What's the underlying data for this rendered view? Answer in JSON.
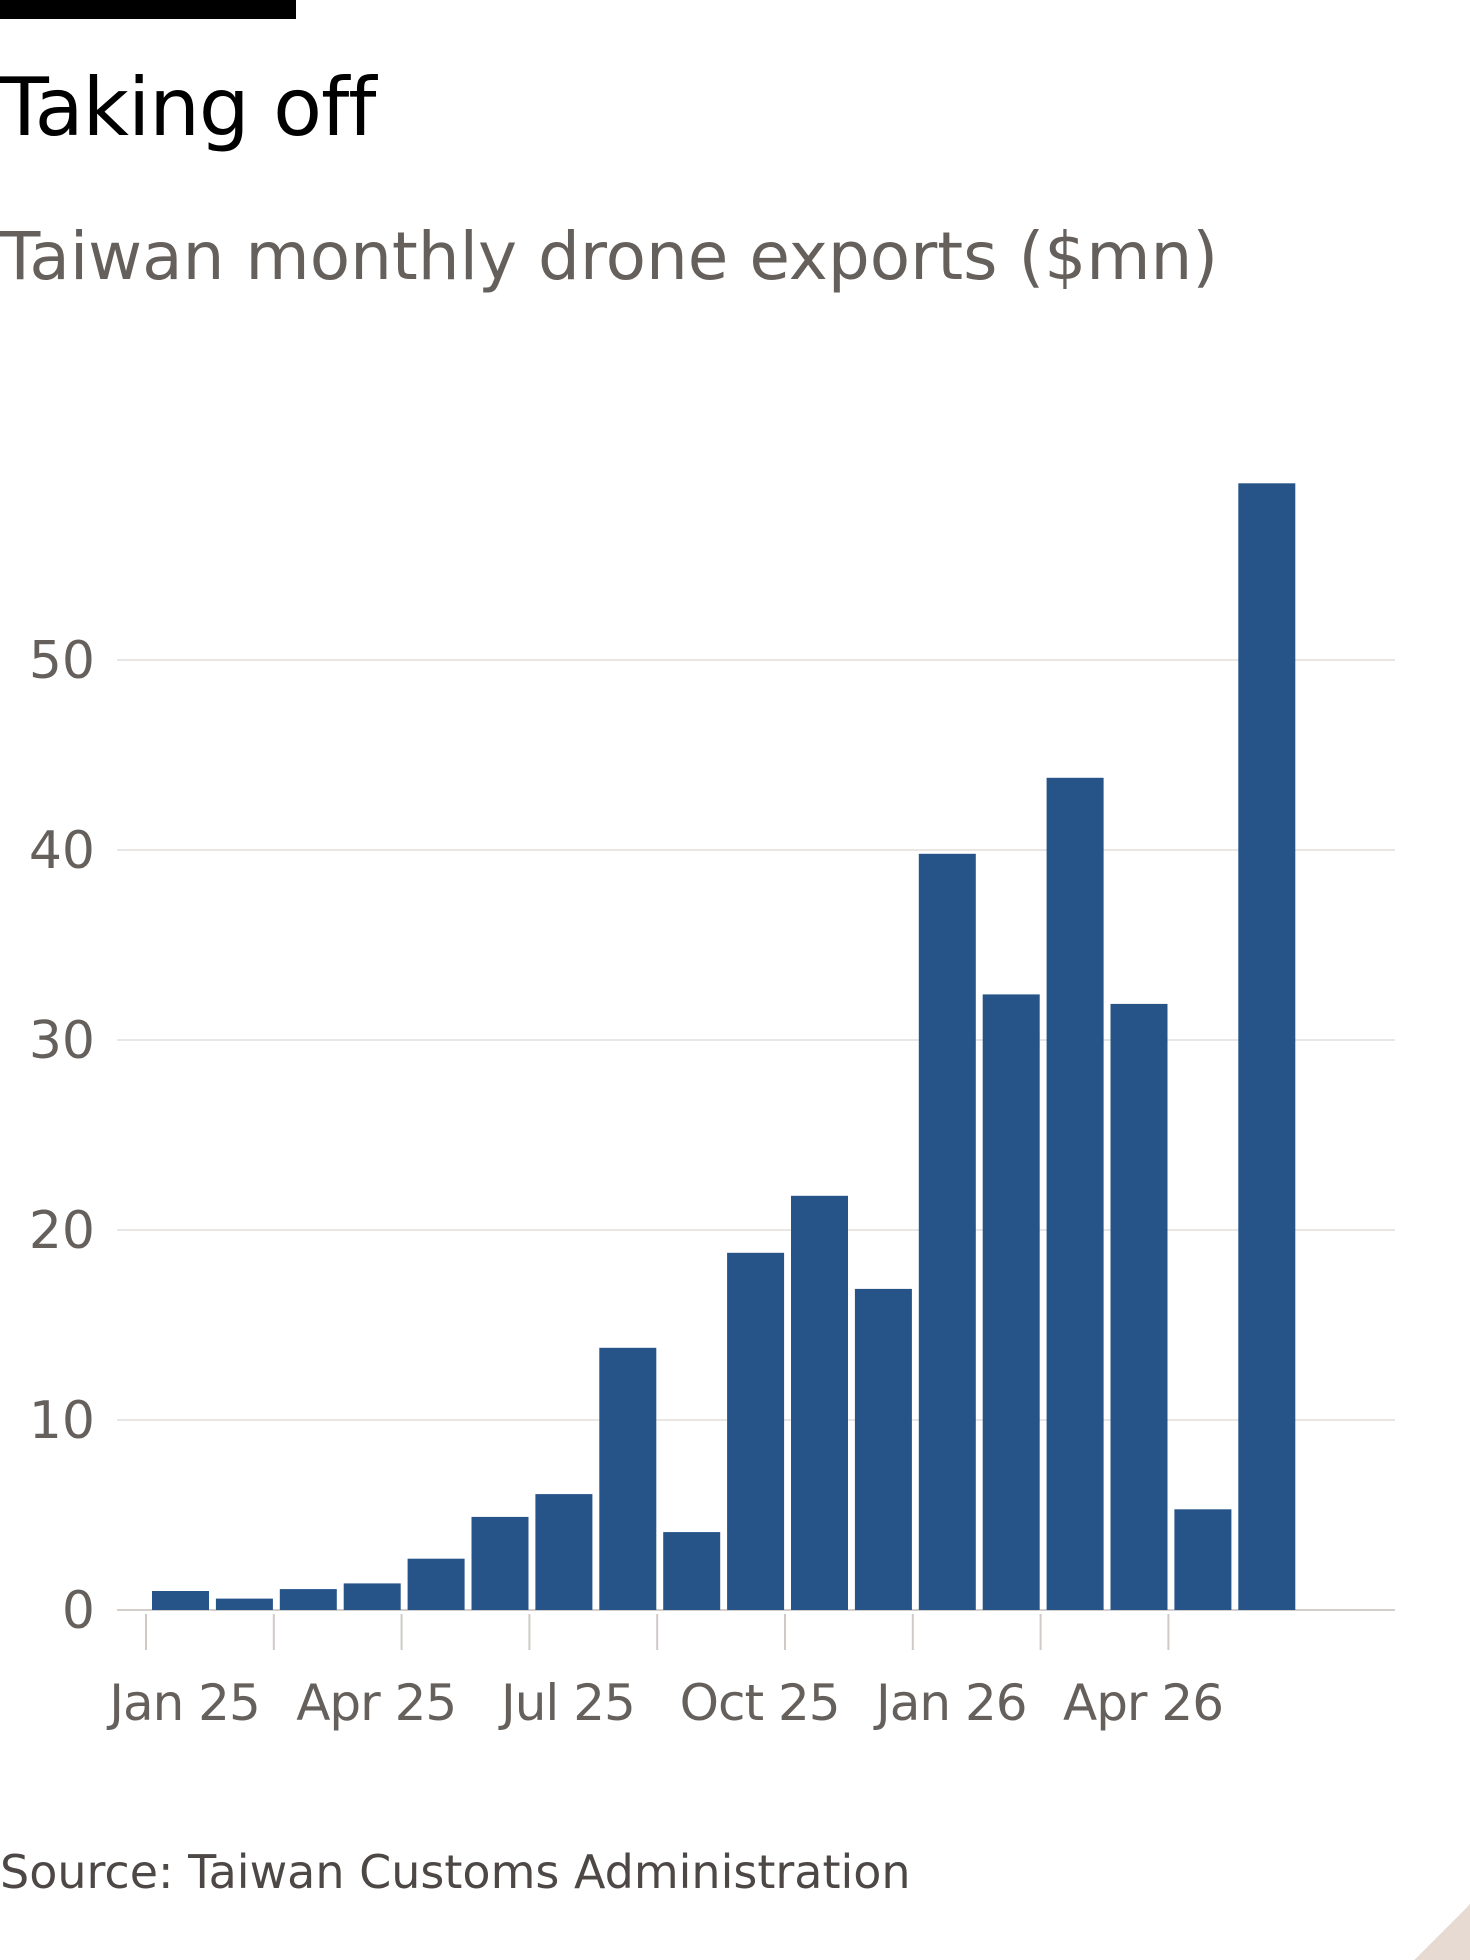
{
  "title": "Taking off",
  "subtitle": "Taiwan monthly drone exports ($mn)",
  "source": "Source: Taiwan Customs Administration",
  "colors": {
    "bar": "#265489",
    "grid": "#e9e6e3",
    "axis_text": "#66605c"
  },
  "chart_data": {
    "type": "bar",
    "title": "Taking off",
    "subtitle": "Taiwan monthly drone exports ($mn)",
    "xlabel": "",
    "ylabel": "",
    "ylim": [
      0,
      60
    ],
    "yticks": [
      0,
      10,
      20,
      30,
      40,
      50
    ],
    "grid": true,
    "categories": [
      "Jan 25",
      "Feb 25",
      "Mar 25",
      "Apr 25",
      "May 25",
      "Jun 25",
      "Jul 25",
      "Aug 25",
      "Sep 25",
      "Oct 25",
      "Nov 25",
      "Dec 25",
      "Jan 26",
      "Feb 26",
      "Mar 26",
      "Apr 26",
      "May 26",
      "Jun 26"
    ],
    "values": [
      1.0,
      0.6,
      1.1,
      1.4,
      2.7,
      4.9,
      6.1,
      13.8,
      4.1,
      18.8,
      21.8,
      16.9,
      39.8,
      32.4,
      43.8,
      31.9,
      5.3,
      59.3
    ],
    "x_tick_labels": [
      {
        "index": 0,
        "label": "Jan 25"
      },
      {
        "index": 3,
        "label": "Apr 25"
      },
      {
        "index": 6,
        "label": "Jul 25"
      },
      {
        "index": 9,
        "label": "Oct 25"
      },
      {
        "index": 12,
        "label": "Jan 26"
      },
      {
        "index": 15,
        "label": "Apr 26"
      }
    ]
  }
}
